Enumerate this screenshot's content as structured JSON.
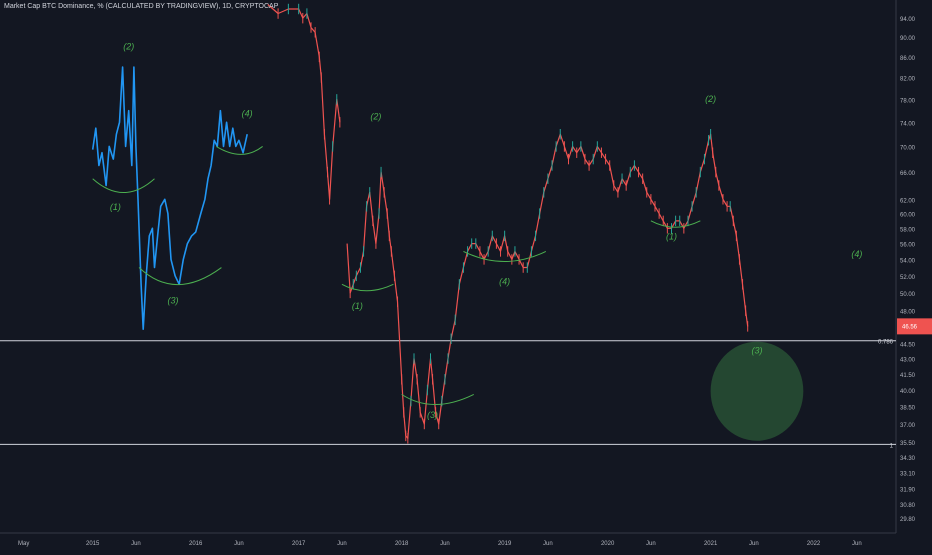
{
  "chart_data": {
    "type": "line",
    "title": "Market Cap BTC Dominance, % (CALCULATED BY TRADINGVIEW), 1D, CRYPTOCAP",
    "xlabel": "",
    "ylabel": "",
    "x_ticks": [
      "May",
      "2015",
      "Jun",
      "2016",
      "Jun",
      "2017",
      "Jun",
      "2018",
      "Jun",
      "2019",
      "Jun",
      "2020",
      "Jun",
      "2021",
      "Jun",
      "2022",
      "Jun"
    ],
    "x_tick_dates": [
      2014.33,
      2015.0,
      2015.42,
      2016.0,
      2016.42,
      2017.0,
      2017.42,
      2018.0,
      2018.42,
      2019.0,
      2019.42,
      2020.0,
      2020.42,
      2021.0,
      2021.42,
      2022.0,
      2022.42
    ],
    "y_ticks": [
      94.0,
      90.0,
      86.0,
      82.0,
      78.0,
      74.0,
      70.0,
      66.0,
      62.0,
      60.0,
      58.0,
      56.0,
      54.0,
      52.0,
      50.0,
      48.0,
      44.5,
      43.0,
      41.5,
      40.0,
      38.5,
      37.0,
      35.5,
      34.3,
      33.1,
      31.9,
      30.8,
      29.8
    ],
    "y_tick_labels": [
      "94.00",
      "90.00",
      "86.00",
      "82.00",
      "78.00",
      "74.00",
      "70.00",
      "66.00",
      "62.00",
      "60.00",
      "58.00",
      "56.00",
      "54.00",
      "52.00",
      "50.00",
      "48.00",
      "44.50",
      "43.00",
      "41.50",
      "40.00",
      "38.50",
      "37.00",
      "35.50",
      "34.30",
      "33.10",
      "31.90",
      "30.80",
      "29.80"
    ],
    "y_scale": "log",
    "xlim": [
      2014.1,
      2022.8
    ],
    "ylim": [
      28.8,
      98
    ],
    "grid": false,
    "series": [
      {
        "color": "#2196f3",
        "points": [
          [
            2015.0,
            69.5
          ],
          [
            2015.03,
            73
          ],
          [
            2015.06,
            67
          ],
          [
            2015.09,
            69
          ],
          [
            2015.13,
            64
          ],
          [
            2015.16,
            70
          ],
          [
            2015.2,
            68
          ],
          [
            2015.23,
            72
          ],
          [
            2015.26,
            74
          ],
          [
            2015.29,
            84
          ],
          [
            2015.32,
            70
          ],
          [
            2015.35,
            76
          ],
          [
            2015.38,
            67
          ],
          [
            2015.4,
            84
          ],
          [
            2015.42,
            70
          ],
          [
            2015.44,
            62
          ],
          [
            2015.47,
            51
          ],
          [
            2015.49,
            46
          ],
          [
            2015.52,
            52
          ],
          [
            2015.55,
            57
          ],
          [
            2015.58,
            58
          ],
          [
            2015.6,
            53
          ],
          [
            2015.63,
            57
          ],
          [
            2015.66,
            61
          ],
          [
            2015.7,
            62
          ],
          [
            2015.73,
            60
          ],
          [
            2015.76,
            54
          ],
          [
            2015.8,
            52
          ],
          [
            2015.84,
            51
          ],
          [
            2015.88,
            54
          ],
          [
            2015.92,
            56
          ],
          [
            2015.96,
            57
          ],
          [
            2016.0,
            57.5
          ],
          [
            2016.05,
            60
          ],
          [
            2016.09,
            62
          ],
          [
            2016.12,
            65
          ],
          [
            2016.15,
            67
          ],
          [
            2016.18,
            71
          ],
          [
            2016.21,
            70
          ],
          [
            2016.24,
            76
          ],
          [
            2016.27,
            70
          ],
          [
            2016.3,
            74
          ],
          [
            2016.33,
            70
          ],
          [
            2016.36,
            73
          ],
          [
            2016.39,
            70
          ],
          [
            2016.42,
            71
          ],
          [
            2016.46,
            69
          ],
          [
            2016.5,
            72
          ]
        ]
      },
      {
        "color": "#ef5350",
        "points": [
          [
            2016.7,
            97
          ],
          [
            2016.8,
            95
          ],
          [
            2016.9,
            96
          ],
          [
            2017.0,
            96
          ],
          [
            2017.04,
            94
          ],
          [
            2017.08,
            95
          ],
          [
            2017.12,
            92
          ],
          [
            2017.16,
            91
          ],
          [
            2017.2,
            86
          ],
          [
            2017.22,
            82
          ],
          [
            2017.25,
            72
          ],
          [
            2017.28,
            66
          ],
          [
            2017.3,
            62
          ],
          [
            2017.33,
            70
          ],
          [
            2017.37,
            78
          ],
          [
            2017.4,
            74
          ]
        ]
      },
      {
        "color": "#ef5350",
        "points": [
          [
            2017.47,
            56
          ],
          [
            2017.5,
            50
          ],
          [
            2017.53,
            51
          ],
          [
            2017.56,
            52
          ],
          [
            2017.6,
            53
          ],
          [
            2017.63,
            55
          ],
          [
            2017.66,
            61
          ],
          [
            2017.69,
            63
          ],
          [
            2017.72,
            59
          ],
          [
            2017.75,
            56
          ],
          [
            2017.78,
            60
          ],
          [
            2017.8,
            66
          ],
          [
            2017.83,
            63
          ],
          [
            2017.86,
            60
          ],
          [
            2017.88,
            57
          ],
          [
            2017.9,
            55
          ],
          [
            2017.93,
            52
          ],
          [
            2017.96,
            49
          ],
          [
            2018.0,
            41
          ],
          [
            2018.02,
            38
          ],
          [
            2018.04,
            36
          ],
          [
            2018.06,
            35.8
          ],
          [
            2018.09,
            39
          ],
          [
            2018.12,
            43
          ],
          [
            2018.15,
            41
          ],
          [
            2018.18,
            38
          ],
          [
            2018.22,
            37
          ],
          [
            2018.25,
            40
          ],
          [
            2018.28,
            43
          ],
          [
            2018.3,
            41
          ],
          [
            2018.33,
            38
          ],
          [
            2018.36,
            37
          ],
          [
            2018.39,
            39
          ],
          [
            2018.42,
            41
          ],
          [
            2018.45,
            43
          ],
          [
            2018.48,
            45
          ],
          [
            2018.52,
            47
          ],
          [
            2018.56,
            51
          ],
          [
            2018.6,
            53
          ],
          [
            2018.64,
            55
          ],
          [
            2018.68,
            56
          ],
          [
            2018.72,
            56
          ],
          [
            2018.76,
            55
          ],
          [
            2018.8,
            54
          ],
          [
            2018.84,
            55
          ],
          [
            2018.88,
            57
          ],
          [
            2018.92,
            56
          ],
          [
            2018.96,
            55
          ],
          [
            2019.0,
            57
          ],
          [
            2019.03,
            55
          ],
          [
            2019.07,
            54
          ],
          [
            2019.1,
            55
          ],
          [
            2019.14,
            54
          ],
          [
            2019.18,
            53
          ],
          [
            2019.22,
            53
          ],
          [
            2019.26,
            55
          ],
          [
            2019.3,
            57
          ],
          [
            2019.34,
            60
          ],
          [
            2019.38,
            63
          ],
          [
            2019.42,
            65
          ],
          [
            2019.46,
            67
          ],
          [
            2019.5,
            70
          ],
          [
            2019.54,
            72
          ],
          [
            2019.58,
            70
          ],
          [
            2019.62,
            68
          ],
          [
            2019.66,
            70
          ],
          [
            2019.7,
            69
          ],
          [
            2019.74,
            70
          ],
          [
            2019.78,
            68
          ],
          [
            2019.82,
            67
          ],
          [
            2019.86,
            68
          ],
          [
            2019.9,
            70
          ],
          [
            2019.94,
            69
          ],
          [
            2019.98,
            68
          ],
          [
            2020.02,
            67
          ],
          [
            2020.06,
            64
          ],
          [
            2020.1,
            63
          ],
          [
            2020.14,
            65
          ],
          [
            2020.18,
            64
          ],
          [
            2020.22,
            66
          ],
          [
            2020.26,
            67
          ],
          [
            2020.3,
            66
          ],
          [
            2020.34,
            65
          ],
          [
            2020.38,
            63
          ],
          [
            2020.42,
            62
          ],
          [
            2020.46,
            61
          ],
          [
            2020.5,
            60
          ],
          [
            2020.54,
            59
          ],
          [
            2020.58,
            58
          ],
          [
            2020.62,
            58
          ],
          [
            2020.66,
            59
          ],
          [
            2020.7,
            59
          ],
          [
            2020.74,
            58
          ],
          [
            2020.78,
            59
          ],
          [
            2020.82,
            61
          ],
          [
            2020.86,
            63
          ],
          [
            2020.9,
            66
          ],
          [
            2020.94,
            68
          ],
          [
            2020.98,
            71
          ],
          [
            2021.0,
            72
          ],
          [
            2021.02,
            69
          ],
          [
            2021.05,
            66
          ],
          [
            2021.08,
            64
          ],
          [
            2021.12,
            62
          ],
          [
            2021.16,
            61
          ],
          [
            2021.19,
            61
          ],
          [
            2021.22,
            59
          ],
          [
            2021.25,
            57
          ],
          [
            2021.28,
            54
          ],
          [
            2021.31,
            51
          ],
          [
            2021.34,
            48
          ],
          [
            2021.36,
            46.3
          ]
        ]
      }
    ],
    "last_value_label": "46.56",
    "horizontal_levels": [
      {
        "value": 44.8,
        "label": "0.786",
        "color": "#d1d4dc"
      },
      {
        "value": 35.3,
        "label": "1",
        "color": "#d1d4dc"
      }
    ],
    "wave_labels": [
      {
        "text": "(2)",
        "x": 2015.35,
        "y": 87.5
      },
      {
        "text": "(1)",
        "x": 2015.22,
        "y": 60.5
      },
      {
        "text": "(3)",
        "x": 2015.78,
        "y": 48.8
      },
      {
        "text": "(4)",
        "x": 2016.5,
        "y": 75
      },
      {
        "text": "(2)",
        "x": 2017.75,
        "y": 74.5
      },
      {
        "text": "(1)",
        "x": 2017.57,
        "y": 48.2
      },
      {
        "text": "(3)",
        "x": 2018.3,
        "y": 37.5
      },
      {
        "text": "(4)",
        "x": 2019.0,
        "y": 51
      },
      {
        "text": "(2)",
        "x": 2021.0,
        "y": 77.5
      },
      {
        "text": "(1)",
        "x": 2020.62,
        "y": 56.5
      },
      {
        "text": "(4)",
        "x": 2022.42,
        "y": 54.3
      },
      {
        "text": "(3)",
        "x": 2021.45,
        "y": 43.5
      }
    ],
    "target_zone": {
      "center_x": 2021.45,
      "center_y": 39.8,
      "value_range": [
        35.6,
        44.7
      ],
      "date_range": [
        2021.0,
        2021.9
      ],
      "color": "#4caf50"
    }
  }
}
